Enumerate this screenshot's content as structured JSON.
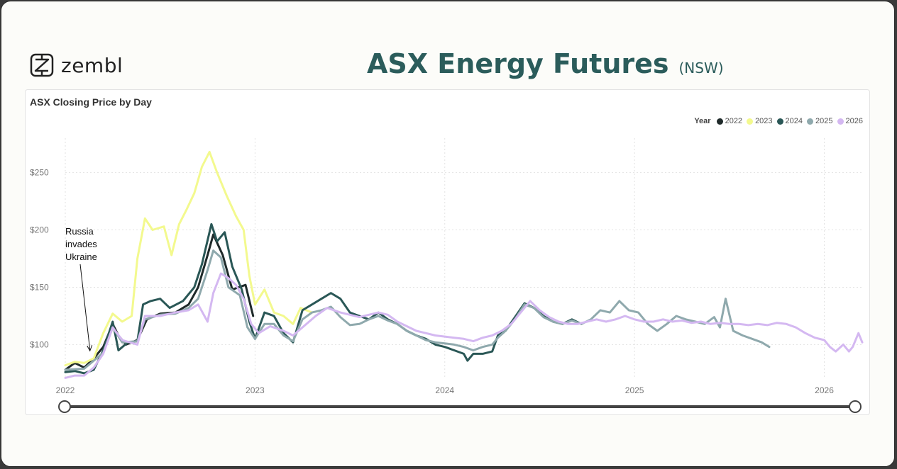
{
  "header": {
    "brand": "zembl",
    "title": "ASX Energy Futures",
    "subtitle": "(NSW)"
  },
  "chart_data": {
    "type": "line",
    "title": "ASX Closing Price by Day",
    "legend_title": "Year",
    "legend_position": "top-right",
    "x_ticks": [
      "2022",
      "2023",
      "2024",
      "2025",
      "2026"
    ],
    "y_ticks": [
      "$100",
      "$150",
      "$200",
      "$250"
    ],
    "ylim": [
      70,
      280
    ],
    "xlim": [
      2022.0,
      2026.2
    ],
    "grid": true,
    "annotation": {
      "text": "Russia\ninvades\nUkraine",
      "x": 2022.13,
      "y": 94
    },
    "series": [
      {
        "name": "2022",
        "color": "#1f2a2a",
        "points": [
          [
            2022.0,
            78
          ],
          [
            2022.05,
            84
          ],
          [
            2022.1,
            80
          ],
          [
            2022.15,
            88
          ],
          [
            2022.2,
            98
          ],
          [
            2022.25,
            118
          ],
          [
            2022.28,
            108
          ],
          [
            2022.32,
            100
          ],
          [
            2022.38,
            104
          ],
          [
            2022.43,
            122
          ],
          [
            2022.5,
            127
          ],
          [
            2022.58,
            128
          ],
          [
            2022.65,
            135
          ],
          [
            2022.7,
            150
          ],
          [
            2022.75,
            178
          ],
          [
            2022.78,
            196
          ],
          [
            2022.83,
            178
          ],
          [
            2022.88,
            148
          ],
          [
            2022.95,
            152
          ],
          [
            2022.99,
            125
          ]
        ]
      },
      {
        "name": "2023",
        "color": "#f3f98e",
        "points": [
          [
            2022.0,
            82
          ],
          [
            2022.05,
            85
          ],
          [
            2022.1,
            84
          ],
          [
            2022.15,
            88
          ],
          [
            2022.2,
            110
          ],
          [
            2022.25,
            127
          ],
          [
            2022.3,
            120
          ],
          [
            2022.35,
            125
          ],
          [
            2022.38,
            175
          ],
          [
            2022.42,
            210
          ],
          [
            2022.46,
            200
          ],
          [
            2022.52,
            203
          ],
          [
            2022.56,
            178
          ],
          [
            2022.6,
            205
          ],
          [
            2022.64,
            218
          ],
          [
            2022.68,
            232
          ],
          [
            2022.72,
            255
          ],
          [
            2022.76,
            268
          ],
          [
            2022.8,
            250
          ],
          [
            2022.85,
            230
          ],
          [
            2022.9,
            212
          ],
          [
            2022.94,
            200
          ],
          [
            2022.97,
            160
          ],
          [
            2023.0,
            135
          ],
          [
            2023.05,
            148
          ],
          [
            2023.1,
            128
          ],
          [
            2023.15,
            125
          ],
          [
            2023.2,
            118
          ],
          [
            2023.24,
            132
          ],
          [
            2023.3,
            128
          ]
        ]
      },
      {
        "name": "2024",
        "color": "#2a5756",
        "points": [
          [
            2022.0,
            76
          ],
          [
            2022.05,
            77
          ],
          [
            2022.1,
            75
          ],
          [
            2022.15,
            78
          ],
          [
            2022.2,
            95
          ],
          [
            2022.25,
            120
          ],
          [
            2022.28,
            95
          ],
          [
            2022.33,
            102
          ],
          [
            2022.38,
            103
          ],
          [
            2022.41,
            135
          ],
          [
            2022.45,
            138
          ],
          [
            2022.5,
            140
          ],
          [
            2022.55,
            132
          ],
          [
            2022.62,
            138
          ],
          [
            2022.68,
            150
          ],
          [
            2022.72,
            170
          ],
          [
            2022.77,
            205
          ],
          [
            2022.8,
            190
          ],
          [
            2022.84,
            198
          ],
          [
            2022.88,
            168
          ],
          [
            2022.93,
            148
          ],
          [
            2022.97,
            120
          ],
          [
            2023.0,
            105
          ],
          [
            2023.05,
            128
          ],
          [
            2023.1,
            125
          ],
          [
            2023.15,
            110
          ],
          [
            2023.2,
            102
          ],
          [
            2023.25,
            130
          ],
          [
            2023.3,
            135
          ],
          [
            2023.35,
            140
          ],
          [
            2023.4,
            145
          ],
          [
            2023.45,
            140
          ],
          [
            2023.5,
            128
          ],
          [
            2023.55,
            125
          ],
          [
            2023.6,
            122
          ],
          [
            2023.65,
            128
          ],
          [
            2023.7,
            122
          ],
          [
            2023.75,
            118
          ],
          [
            2023.8,
            112
          ],
          [
            2023.85,
            108
          ],
          [
            2023.9,
            105
          ],
          [
            2023.95,
            100
          ],
          [
            2024.0,
            98
          ],
          [
            2024.05,
            95
          ],
          [
            2024.1,
            92
          ],
          [
            2024.12,
            86
          ],
          [
            2024.15,
            92
          ],
          [
            2024.2,
            92
          ],
          [
            2024.25,
            94
          ],
          [
            2024.28,
            108
          ],
          [
            2024.32,
            112
          ],
          [
            2024.37,
            124
          ],
          [
            2024.42,
            136
          ],
          [
            2024.47,
            132
          ],
          [
            2024.52,
            125
          ],
          [
            2024.57,
            120
          ],
          [
            2024.62,
            118
          ],
          [
            2024.67,
            122
          ],
          [
            2024.72,
            118
          ]
        ]
      },
      {
        "name": "2025",
        "color": "#8fa9ad",
        "points": [
          [
            2022.0,
            78
          ],
          [
            2022.1,
            79
          ],
          [
            2022.2,
            93
          ],
          [
            2022.25,
            115
          ],
          [
            2022.3,
            102
          ],
          [
            2022.38,
            103
          ],
          [
            2022.42,
            122
          ],
          [
            2022.5,
            126
          ],
          [
            2022.58,
            127
          ],
          [
            2022.65,
            132
          ],
          [
            2022.7,
            140
          ],
          [
            2022.75,
            165
          ],
          [
            2022.78,
            182
          ],
          [
            2022.82,
            176
          ],
          [
            2022.86,
            150
          ],
          [
            2022.92,
            143
          ],
          [
            2022.96,
            115
          ],
          [
            2023.0,
            105
          ],
          [
            2023.05,
            118
          ],
          [
            2023.1,
            118
          ],
          [
            2023.15,
            108
          ],
          [
            2023.2,
            103
          ],
          [
            2023.25,
            122
          ],
          [
            2023.3,
            128
          ],
          [
            2023.35,
            130
          ],
          [
            2023.4,
            133
          ],
          [
            2023.45,
            124
          ],
          [
            2023.5,
            117
          ],
          [
            2023.55,
            118
          ],
          [
            2023.6,
            122
          ],
          [
            2023.65,
            125
          ],
          [
            2023.7,
            121
          ],
          [
            2023.75,
            118
          ],
          [
            2023.8,
            112
          ],
          [
            2023.85,
            108
          ],
          [
            2023.9,
            104
          ],
          [
            2023.95,
            102
          ],
          [
            2024.0,
            101
          ],
          [
            2024.05,
            100
          ],
          [
            2024.1,
            98
          ],
          [
            2024.15,
            95
          ],
          [
            2024.2,
            98
          ],
          [
            2024.25,
            100
          ],
          [
            2024.28,
            106
          ],
          [
            2024.32,
            112
          ],
          [
            2024.37,
            122
          ],
          [
            2024.42,
            135
          ],
          [
            2024.47,
            132
          ],
          [
            2024.52,
            124
          ],
          [
            2024.57,
            120
          ],
          [
            2024.62,
            118
          ],
          [
            2024.67,
            121
          ],
          [
            2024.72,
            118
          ],
          [
            2024.77,
            122
          ],
          [
            2024.82,
            130
          ],
          [
            2024.87,
            128
          ],
          [
            2024.92,
            138
          ],
          [
            2024.97,
            130
          ],
          [
            2025.02,
            128
          ],
          [
            2025.07,
            118
          ],
          [
            2025.12,
            112
          ],
          [
            2025.17,
            118
          ],
          [
            2025.22,
            125
          ],
          [
            2025.27,
            122
          ],
          [
            2025.32,
            120
          ],
          [
            2025.37,
            118
          ],
          [
            2025.42,
            124
          ],
          [
            2025.45,
            115
          ],
          [
            2025.48,
            140
          ],
          [
            2025.52,
            112
          ],
          [
            2025.57,
            108
          ],
          [
            2025.62,
            105
          ],
          [
            2025.67,
            102
          ],
          [
            2025.71,
            98
          ]
        ]
      },
      {
        "name": "2026",
        "color": "#d4b8f1",
        "points": [
          [
            2022.0,
            71
          ],
          [
            2022.05,
            73
          ],
          [
            2022.1,
            73
          ],
          [
            2022.15,
            80
          ],
          [
            2022.2,
            92
          ],
          [
            2022.25,
            115
          ],
          [
            2022.3,
            104
          ],
          [
            2022.38,
            100
          ],
          [
            2022.42,
            125
          ],
          [
            2022.5,
            125
          ],
          [
            2022.58,
            128
          ],
          [
            2022.65,
            130
          ],
          [
            2022.7,
            135
          ],
          [
            2022.75,
            120
          ],
          [
            2022.78,
            145
          ],
          [
            2022.82,
            162
          ],
          [
            2022.86,
            158
          ],
          [
            2022.9,
            152
          ],
          [
            2022.94,
            140
          ],
          [
            2022.98,
            118
          ],
          [
            2023.02,
            110
          ],
          [
            2023.08,
            116
          ],
          [
            2023.15,
            112
          ],
          [
            2023.2,
            108
          ],
          [
            2023.25,
            115
          ],
          [
            2023.32,
            125
          ],
          [
            2023.38,
            132
          ],
          [
            2023.45,
            128
          ],
          [
            2023.5,
            126
          ],
          [
            2023.55,
            124
          ],
          [
            2023.6,
            126
          ],
          [
            2023.65,
            128
          ],
          [
            2023.7,
            126
          ],
          [
            2023.75,
            120
          ],
          [
            2023.8,
            116
          ],
          [
            2023.85,
            112
          ],
          [
            2023.9,
            110
          ],
          [
            2023.95,
            108
          ],
          [
            2024.0,
            107
          ],
          [
            2024.05,
            106
          ],
          [
            2024.1,
            105
          ],
          [
            2024.15,
            103
          ],
          [
            2024.2,
            106
          ],
          [
            2024.25,
            108
          ],
          [
            2024.3,
            112
          ],
          [
            2024.35,
            118
          ],
          [
            2024.4,
            128
          ],
          [
            2024.45,
            138
          ],
          [
            2024.5,
            130
          ],
          [
            2024.55,
            124
          ],
          [
            2024.6,
            120
          ],
          [
            2024.65,
            118
          ],
          [
            2024.7,
            118
          ],
          [
            2024.75,
            120
          ],
          [
            2024.8,
            122
          ],
          [
            2024.85,
            120
          ],
          [
            2024.9,
            122
          ],
          [
            2024.95,
            125
          ],
          [
            2025.0,
            122
          ],
          [
            2025.05,
            120
          ],
          [
            2025.1,
            120
          ],
          [
            2025.15,
            122
          ],
          [
            2025.2,
            120
          ],
          [
            2025.25,
            121
          ],
          [
            2025.3,
            119
          ],
          [
            2025.35,
            120
          ],
          [
            2025.4,
            118
          ],
          [
            2025.45,
            119
          ],
          [
            2025.5,
            118
          ],
          [
            2025.55,
            118
          ],
          [
            2025.6,
            117
          ],
          [
            2025.65,
            118
          ],
          [
            2025.7,
            117
          ],
          [
            2025.75,
            119
          ],
          [
            2025.8,
            118
          ],
          [
            2025.85,
            115
          ],
          [
            2025.9,
            110
          ],
          [
            2025.95,
            106
          ],
          [
            2026.0,
            104
          ],
          [
            2026.03,
            98
          ],
          [
            2026.06,
            94
          ],
          [
            2026.1,
            100
          ],
          [
            2026.13,
            94
          ],
          [
            2026.15,
            98
          ],
          [
            2026.18,
            110
          ],
          [
            2026.2,
            102
          ]
        ]
      }
    ]
  }
}
